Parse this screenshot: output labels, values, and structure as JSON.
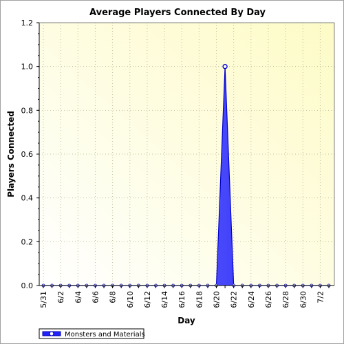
{
  "chart_data": {
    "type": "area",
    "title": "Average Players Connected By Day",
    "xlabel": "Day",
    "ylabel": "Players Connected",
    "ylim": [
      0,
      1.2
    ],
    "yticks": [
      "0.0",
      "0.2",
      "0.4",
      "0.6",
      "0.8",
      "1.0",
      "1.2"
    ],
    "x": [
      "5/31",
      "6/1",
      "6/2",
      "6/3",
      "6/4",
      "6/5",
      "6/6",
      "6/7",
      "6/8",
      "6/9",
      "6/10",
      "6/11",
      "6/12",
      "6/13",
      "6/14",
      "6/15",
      "6/16",
      "6/17",
      "6/18",
      "6/19",
      "6/20",
      "6/21",
      "6/22",
      "6/23",
      "6/24",
      "6/25",
      "6/26",
      "6/27",
      "6/28",
      "6/29",
      "6/30",
      "7/1",
      "7/2",
      "7/3"
    ],
    "xtick_labels": [
      "5/31",
      "6/2",
      "6/4",
      "6/6",
      "6/8",
      "6/10",
      "6/12",
      "6/14",
      "6/16",
      "6/18",
      "6/20",
      "6/22",
      "6/24",
      "6/26",
      "6/28",
      "6/30",
      "7/2"
    ],
    "series": [
      {
        "name": "Monsters and Materials",
        "color": "#0000ff",
        "values": [
          0,
          0,
          0,
          0,
          0,
          0,
          0,
          0,
          0,
          0,
          0,
          0,
          0,
          0,
          0,
          0,
          0,
          0,
          0,
          0,
          0,
          1.0,
          0,
          0,
          0,
          0,
          0,
          0,
          0,
          0,
          0,
          0,
          0,
          0
        ]
      }
    ],
    "grid": true,
    "legend": "bottom-left"
  }
}
